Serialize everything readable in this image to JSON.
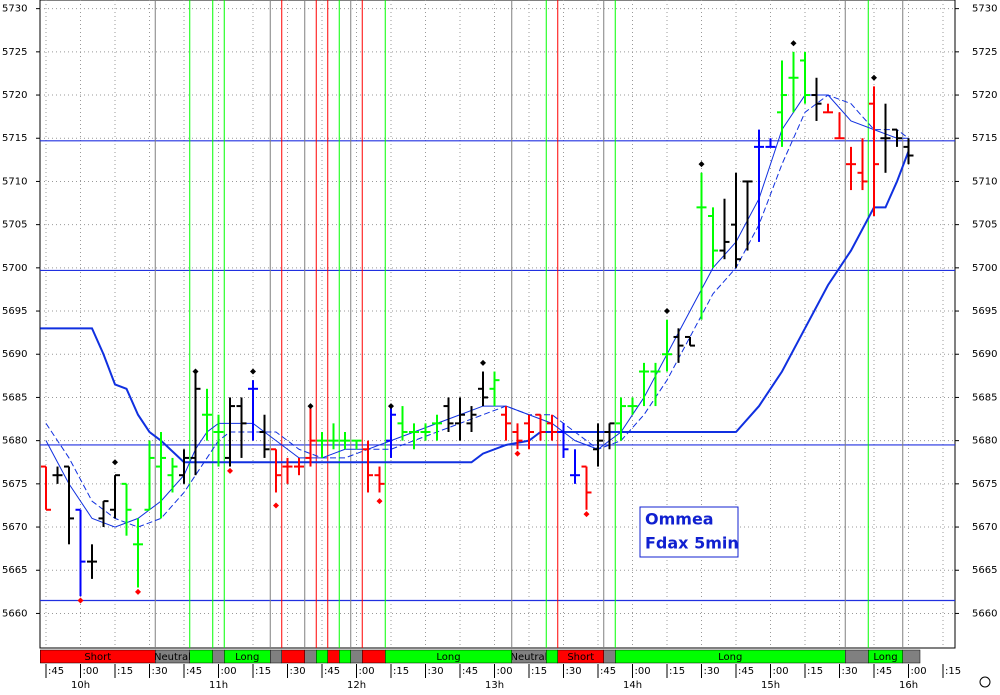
{
  "chart_data": {
    "type": "ohlc",
    "ylim": [
      5656,
      5731
    ],
    "yticks": [
      5660,
      5665,
      5670,
      5675,
      5680,
      5685,
      5690,
      5695,
      5700,
      5705,
      5710,
      5715,
      5720,
      5725,
      5730
    ],
    "grid": true,
    "ohlc": [
      [
        5677,
        5677,
        5672,
        5672
      ],
      [
        5676,
        5677,
        5675,
        5676
      ],
      [
        5677,
        5677,
        5668,
        5671
      ],
      [
        5672,
        5672,
        5662,
        5666
      ],
      [
        5666,
        5668,
        5664,
        5666
      ],
      [
        5671,
        5673,
        5670,
        5673
      ],
      [
        5672,
        5676,
        5671,
        5676
      ],
      [
        5675,
        5675,
        5669,
        5672
      ],
      [
        5668,
        5671,
        5663,
        5668
      ],
      [
        5672,
        5680,
        5672,
        5678
      ],
      [
        5677,
        5681,
        5671,
        5678
      ],
      [
        5676,
        5678,
        5674,
        5677
      ],
      [
        5676,
        5679,
        5675,
        5678
      ],
      [
        5678,
        5688,
        5676,
        5686
      ],
      [
        5683,
        5686,
        5680,
        5683
      ],
      [
        5681,
        5683,
        5677,
        5681
      ],
      [
        5678,
        5685,
        5677,
        5684
      ],
      [
        5684,
        5685,
        5678,
        5682
      ],
      [
        5686,
        5687,
        5680,
        5686
      ],
      [
        5681,
        5683,
        5678,
        5679
      ],
      [
        5679,
        5679,
        5674,
        5676
      ],
      [
        5677,
        5678,
        5675,
        5677
      ],
      [
        5677,
        5678,
        5676,
        5677
      ],
      [
        5678,
        5684,
        5677,
        5680
      ],
      [
        5680,
        5681,
        5678,
        5680
      ],
      [
        5680,
        5682,
        5679,
        5680
      ],
      [
        5680,
        5681,
        5679,
        5680
      ],
      [
        5680,
        5680,
        5679,
        5680
      ],
      [
        5679,
        5680,
        5674,
        5676
      ],
      [
        5676,
        5677,
        5674,
        5675
      ],
      [
        5680,
        5684,
        5678,
        5683
      ],
      [
        5682,
        5684,
        5680,
        5681
      ],
      [
        5681,
        5682,
        5679,
        5681
      ],
      [
        5681,
        5682,
        5680,
        5681
      ],
      [
        5682,
        5683,
        5680,
        5682
      ],
      [
        5684,
        5685,
        5681,
        5682
      ],
      [
        5682,
        5685,
        5680,
        5683
      ],
      [
        5682,
        5684,
        5681,
        5683
      ],
      [
        5686,
        5688,
        5684,
        5685
      ],
      [
        5686,
        5688,
        5684,
        5687
      ],
      [
        5683,
        5684,
        5680,
        5682
      ],
      [
        5681,
        5682,
        5679,
        5680
      ],
      [
        5682,
        5683,
        5679,
        5681
      ],
      [
        5683,
        5683,
        5680,
        5681
      ],
      [
        5682,
        5683,
        5680,
        5681
      ],
      [
        5681,
        5682,
        5678,
        5679
      ],
      [
        5676,
        5679,
        5675,
        5676
      ],
      [
        5677,
        5677,
        5672,
        5674
      ],
      [
        5679,
        5682,
        5677,
        5680
      ],
      [
        5681,
        5682,
        5679,
        5682
      ],
      [
        5682,
        5685,
        5680,
        5684
      ],
      [
        5684,
        5685,
        5683,
        5684
      ],
      [
        5688,
        5689,
        5684,
        5688
      ],
      [
        5688,
        5689,
        5684,
        5688
      ],
      [
        5690,
        5694,
        5688,
        5690
      ],
      [
        5692,
        5693,
        5689,
        5691
      ],
      [
        5692,
        5692,
        5691,
        5691
      ],
      [
        5707,
        5711,
        5694,
        5707
      ],
      [
        5706,
        5707,
        5700,
        5702
      ],
      [
        5702,
        5708,
        5701,
        5703
      ],
      [
        5705,
        5711,
        5700,
        5701
      ],
      [
        5710,
        5710,
        5702,
        5710
      ],
      [
        5714,
        5716,
        5703,
        5714
      ],
      [
        5714,
        5715,
        5714,
        5714
      ],
      [
        5718,
        5724,
        5714,
        5720
      ],
      [
        5722,
        5725,
        5718,
        5722
      ],
      [
        5724,
        5725,
        5719,
        5720
      ],
      [
        5720,
        5722,
        5717,
        5719
      ],
      [
        5718,
        5719,
        5718,
        5718
      ],
      [
        5715,
        5718,
        5715,
        5715
      ],
      [
        5712,
        5714,
        5709,
        5712
      ],
      [
        5711,
        5715,
        5709,
        5710
      ],
      [
        5719,
        5721,
        5706,
        5712
      ],
      [
        5715,
        5719,
        5711,
        5715
      ],
      [
        5716,
        5716,
        5714,
        5715
      ],
      [
        5714,
        5715,
        5712,
        5713
      ]
    ],
    "bar_colors": [
      "red",
      "black",
      "black",
      "blue",
      "black",
      "black",
      "black",
      "lime",
      "lime",
      "lime",
      "lime",
      "lime",
      "black",
      "black",
      "lime",
      "lime",
      "black",
      "black",
      "blue",
      "black",
      "red",
      "red",
      "red",
      "red",
      "lime",
      "lime",
      "lime",
      "lime",
      "red",
      "red",
      "blue",
      "lime",
      "lime",
      "lime",
      "lime",
      "black",
      "black",
      "black",
      "black",
      "lime",
      "red",
      "red",
      "red",
      "red",
      "red",
      "blue",
      "blue",
      "red",
      "black",
      "black",
      "lime",
      "lime",
      "lime",
      "lime",
      "lime",
      "black",
      "black",
      "lime",
      "lime",
      "black",
      "black",
      "black",
      "blue",
      "blue",
      "lime",
      "lime",
      "lime",
      "black",
      "red",
      "red",
      "red",
      "red",
      "red",
      "black",
      "black",
      "black"
    ],
    "high_markers": [
      {
        "bar": 6,
        "value": 5677.5
      },
      {
        "bar": 13,
        "value": 5688
      },
      {
        "bar": 18,
        "value": 5688
      },
      {
        "bar": 23,
        "value": 5684
      },
      {
        "bar": 30,
        "value": 5684
      },
      {
        "bar": 38,
        "value": 5689
      },
      {
        "bar": 54,
        "value": 5695
      },
      {
        "bar": 57,
        "value": 5712
      },
      {
        "bar": 65,
        "value": 5726
      },
      {
        "bar": 72,
        "value": 5722
      }
    ],
    "low_markers": [
      {
        "bar": 3,
        "value": 5661.5
      },
      {
        "bar": 8,
        "value": 5662.5
      },
      {
        "bar": 16,
        "value": 5676.5
      },
      {
        "bar": 20,
        "value": 5672.5
      },
      {
        "bar": 29,
        "value": 5673
      },
      {
        "bar": 41,
        "value": 5678.5
      },
      {
        "bar": 47,
        "value": 5671.5
      }
    ],
    "lines": [
      {
        "style": "thick",
        "color": "#1030e0",
        "x": [
          -0.5,
          4,
          5,
          6,
          7,
          8,
          9,
          10,
          12,
          37,
          38,
          40,
          42,
          43,
          60,
          62,
          64,
          66,
          68,
          70,
          72,
          73,
          74,
          75
        ],
        "values": [
          5693,
          5693,
          5690,
          5686.5,
          5686,
          5683,
          5681,
          5680,
          5677.5,
          5677.5,
          5678.5,
          5679.5,
          5680,
          5681,
          5681,
          5684,
          5688,
          5693,
          5698,
          5702,
          5707,
          5707,
          5710,
          5713.5
        ]
      },
      {
        "style": "thin",
        "color": "#1030e0",
        "x": [
          0,
          2,
          4,
          6,
          8,
          10,
          12,
          13,
          14,
          15,
          16,
          18,
          20,
          22,
          24,
          26,
          28,
          30,
          32,
          34,
          36,
          38,
          40,
          42,
          44,
          46,
          48,
          50,
          52,
          54,
          56,
          58,
          60,
          62,
          64,
          66,
          68,
          70,
          72,
          74,
          75
        ],
        "values": [
          5680,
          5675,
          5671,
          5670,
          5671,
          5673,
          5676,
          5679,
          5681,
          5682,
          5682,
          5682,
          5680,
          5678,
          5678,
          5679,
          5679,
          5680,
          5681,
          5682,
          5683,
          5684,
          5684,
          5683,
          5682,
          5680,
          5679,
          5681,
          5685,
          5690,
          5695,
          5700,
          5703,
          5708,
          5716,
          5720,
          5720,
          5717,
          5716,
          5715,
          5715
        ]
      },
      {
        "style": "dashed",
        "color": "#1030e0",
        "x": [
          0,
          2,
          4,
          6,
          8,
          10,
          12,
          13,
          14,
          15,
          16,
          18,
          20,
          22,
          24,
          26,
          28,
          30,
          32,
          34,
          36,
          38,
          40,
          42,
          44,
          46,
          48,
          50,
          52,
          54,
          56,
          58,
          60,
          62,
          64,
          66,
          68,
          70,
          72,
          74,
          75
        ],
        "values": [
          5682,
          5678,
          5673,
          5671,
          5670,
          5671,
          5674,
          5676,
          5678,
          5680,
          5681,
          5681,
          5681,
          5679,
          5678,
          5678,
          5679,
          5679,
          5680,
          5681,
          5682,
          5683,
          5684,
          5683,
          5683,
          5681,
          5679,
          5680,
          5683,
          5687,
          5692,
          5697,
          5700,
          5705,
          5712,
          5718,
          5720,
          5719,
          5716,
          5716,
          5715
        ]
      }
    ],
    "hlines": [
      5714.7,
      5699.7,
      5679.5,
      5661.5
    ],
    "vlines": [
      {
        "x": 9.5,
        "color": "gray"
      },
      {
        "x": 12.5,
        "color": "lime"
      },
      {
        "x": 14.5,
        "color": "lime"
      },
      {
        "x": 15.5,
        "color": "lime"
      },
      {
        "x": 19.5,
        "color": "gray"
      },
      {
        "x": 20.5,
        "color": "red"
      },
      {
        "x": 22.5,
        "color": "gray"
      },
      {
        "x": 23.5,
        "color": "red"
      },
      {
        "x": 24.5,
        "color": "red"
      },
      {
        "x": 25.5,
        "color": "lime"
      },
      {
        "x": 26.5,
        "color": "gray"
      },
      {
        "x": 27.5,
        "color": "red"
      },
      {
        "x": 29.5,
        "color": "lime"
      },
      {
        "x": 40.5,
        "color": "gray"
      },
      {
        "x": 43.5,
        "color": "lime"
      },
      {
        "x": 44.5,
        "color": "red"
      },
      {
        "x": 48.5,
        "color": "gray"
      },
      {
        "x": 49.5,
        "color": "lime"
      },
      {
        "x": 69.5,
        "color": "gray"
      },
      {
        "x": 71.5,
        "color": "lime"
      },
      {
        "x": 74.5,
        "color": "gray"
      }
    ],
    "regimes": [
      {
        "label": "Short",
        "color": "red",
        "to": 9.5
      },
      {
        "label": "Neutral",
        "color": "gray",
        "to": 12.5
      },
      {
        "color": "lime",
        "to": 14.5
      },
      {
        "color": "gray",
        "to": 15.5
      },
      {
        "label": "Long",
        "color": "lime",
        "to": 19.5
      },
      {
        "color": "gray",
        "to": 20.5
      },
      {
        "color": "red",
        "to": 22.5
      },
      {
        "color": "gray",
        "to": 23.5
      },
      {
        "color": "lime",
        "to": 24.5
      },
      {
        "color": "red",
        "to": 25.5
      },
      {
        "color": "lime",
        "to": 26.5
      },
      {
        "color": "gray",
        "to": 27.5
      },
      {
        "color": "red",
        "to": 29.5
      },
      {
        "label": "Long",
        "color": "lime",
        "to": 40.5
      },
      {
        "label": "Neutral",
        "color": "gray",
        "to": 43.5
      },
      {
        "color": "lime",
        "to": 44.5
      },
      {
        "label": "Short",
        "color": "red",
        "to": 48.5
      },
      {
        "color": "gray",
        "to": 49.5
      },
      {
        "label": "Long",
        "color": "lime",
        "to": 69.5
      },
      {
        "color": "gray",
        "to": 71.5
      },
      {
        "label": "Long",
        "color": "lime",
        "to": 74.5
      },
      {
        "color": "gray",
        "to": 76
      }
    ],
    "minute_labels": [
      ":45",
      ":00",
      ":15",
      ":30",
      ":45",
      ":00",
      ":15",
      ":30",
      ":45",
      ":00",
      ":15",
      ":30",
      ":45",
      ":00",
      ":15",
      ":30",
      ":45",
      ":00",
      ":15",
      ":30",
      ":45",
      ":00",
      ":15",
      ":30",
      ":45",
      ":00",
      ":15"
    ],
    "hour_labels": [
      "10h",
      "11h",
      "12h",
      "13h",
      "14h",
      "15h",
      "16h"
    ],
    "annotation": [
      "Ommea",
      "Fdax 5min"
    ]
  }
}
